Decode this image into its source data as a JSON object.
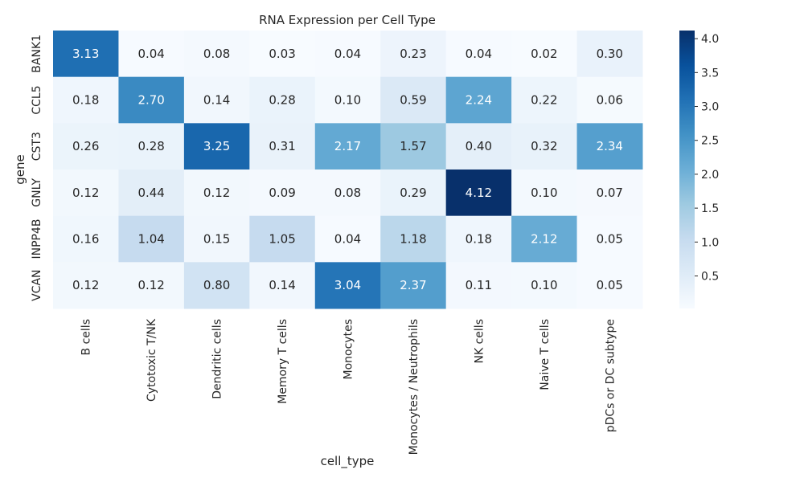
{
  "chart_data": {
    "type": "heatmap",
    "title": "RNA Expression per Cell Type",
    "xlabel": "cell_type",
    "ylabel": "gene",
    "x_categories": [
      "B cells",
      "Cytotoxic T/NK",
      "Dendritic cells",
      "Memory T cells",
      "Monocytes",
      "Monocytes / Neutrophils",
      "NK cells",
      "Naive T cells",
      "pDCs or DC subtype"
    ],
    "y_categories": [
      "BANK1",
      "CCL5",
      "CST3",
      "GNLY",
      "INPP4B",
      "VCAN"
    ],
    "values": [
      [
        3.13,
        0.04,
        0.08,
        0.03,
        0.04,
        0.23,
        0.04,
        0.02,
        0.3
      ],
      [
        0.18,
        2.7,
        0.14,
        0.28,
        0.1,
        0.59,
        2.24,
        0.22,
        0.06
      ],
      [
        0.26,
        0.28,
        3.25,
        0.31,
        2.17,
        1.57,
        0.4,
        0.32,
        2.34
      ],
      [
        0.12,
        0.44,
        0.12,
        0.09,
        0.08,
        0.29,
        4.12,
        0.1,
        0.07
      ],
      [
        0.16,
        1.04,
        0.15,
        1.05,
        0.04,
        1.18,
        0.18,
        2.12,
        0.05
      ],
      [
        0.12,
        0.12,
        0.8,
        0.14,
        3.04,
        2.37,
        0.11,
        0.1,
        0.05
      ]
    ],
    "value_labels": [
      [
        "3.13",
        "0.04",
        "0.08",
        "0.03",
        "0.04",
        "0.23",
        "0.04",
        "0.02",
        "0.30"
      ],
      [
        "0.18",
        "2.70",
        "0.14",
        "0.28",
        "0.10",
        "0.59",
        "2.24",
        "0.22",
        "0.06"
      ],
      [
        "0.26",
        "0.28",
        "3.25",
        "0.31",
        "2.17",
        "1.57",
        "0.40",
        "0.32",
        "2.34"
      ],
      [
        "0.12",
        "0.44",
        "0.12",
        "0.09",
        "0.08",
        "0.29",
        "4.12",
        "0.10",
        "0.07"
      ],
      [
        "0.16",
        "1.04",
        "0.15",
        "1.05",
        "0.04",
        "1.18",
        "0.18",
        "2.12",
        "0.05"
      ],
      [
        "0.12",
        "0.12",
        "0.80",
        "0.14",
        "3.04",
        "2.37",
        "0.11",
        "0.10",
        "0.05"
      ]
    ],
    "colormap": "Blues",
    "vmin": 0.02,
    "vmax": 4.12,
    "colorbar_ticks": [
      {
        "value": 0.5,
        "label": "0.5"
      },
      {
        "value": 1.0,
        "label": "1.0"
      },
      {
        "value": 1.5,
        "label": "1.5"
      },
      {
        "value": 2.0,
        "label": "2.0"
      },
      {
        "value": 2.5,
        "label": "2.5"
      },
      {
        "value": 3.0,
        "label": "3.0"
      },
      {
        "value": 3.5,
        "label": "3.5"
      },
      {
        "value": 4.0,
        "label": "4.0"
      }
    ],
    "colors": {
      "low": "#f7fbff",
      "high": "#08306b",
      "text_dark": "#262626",
      "text_light": "#ffffff"
    }
  }
}
